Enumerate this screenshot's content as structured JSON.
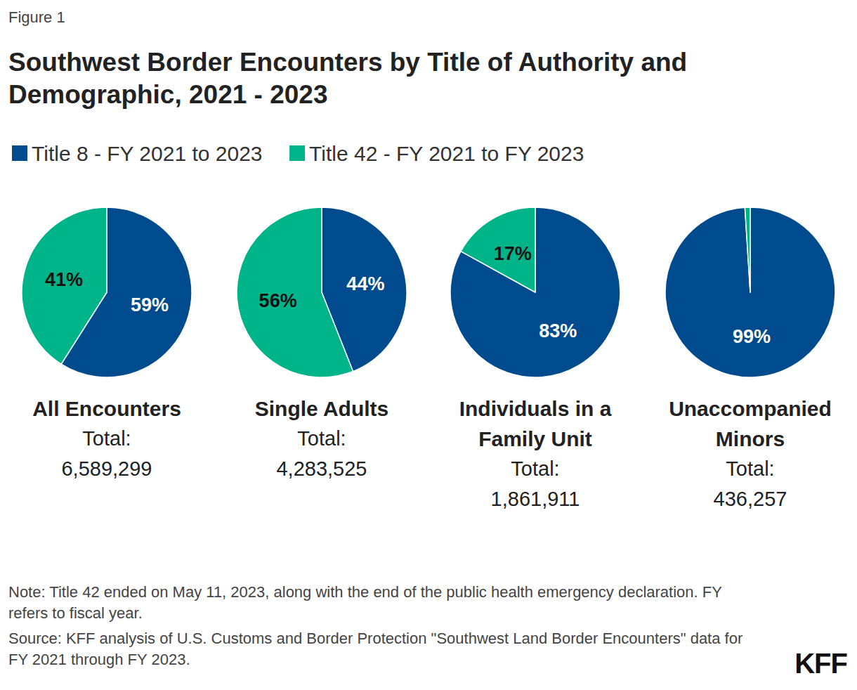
{
  "figure_label": "Figure 1",
  "title": "Southwest Border Encounters by Title of Authority and Demographic, 2021 - 2023",
  "chart_data": [
    {
      "type": "pie",
      "title": "All Encounters",
      "subtitle": "Total:",
      "total": {
        "value": 6589299,
        "label": "6,589,299"
      },
      "categories": [
        "Title 8 - FY 2021 to 2023",
        "Title 42 - FY 2021 to FY 2023"
      ],
      "values": [
        59,
        41
      ],
      "value_labels": [
        "59%",
        "41%"
      ],
      "colors": [
        "#004b8d",
        "#00b48a"
      ],
      "data_labels": true
    },
    {
      "type": "pie",
      "title": "Single Adults",
      "subtitle": "Total:",
      "total": {
        "value": 4283525,
        "label": "4,283,525"
      },
      "categories": [
        "Title 8 - FY 2021 to 2023",
        "Title 42 - FY 2021 to FY 2023"
      ],
      "values": [
        44,
        56
      ],
      "value_labels": [
        "44%",
        "56%"
      ],
      "colors": [
        "#004b8d",
        "#00b48a"
      ],
      "data_labels": true
    },
    {
      "type": "pie",
      "title": "Individuals in a Family Unit",
      "subtitle": "Total:",
      "total": {
        "value": 1861911,
        "label": "1,861,911"
      },
      "categories": [
        "Title 8 - FY 2021 to 2023",
        "Title 42 - FY 2021 to FY 2023"
      ],
      "values": [
        83,
        17
      ],
      "value_labels": [
        "83%",
        "17%"
      ],
      "colors": [
        "#004b8d",
        "#00b48a"
      ],
      "data_labels": true
    },
    {
      "type": "pie",
      "title": "Unaccompanied Minors",
      "subtitle": "Total:",
      "total": {
        "value": 436257,
        "label": "436,257"
      },
      "categories": [
        "Title 8 - FY 2021 to 2023",
        "Title 42 - FY 2021 to FY 2023"
      ],
      "values": [
        99,
        1
      ],
      "value_labels": [
        "99%",
        null
      ],
      "colors": [
        "#004b8d",
        "#00b48a"
      ],
      "data_labels": true
    }
  ],
  "notes": [
    "Note: Title 42 ended on May 11, 2023, along with the end of the public health emergency declaration. FY refers to fiscal year.",
    "Source: KFF analysis of U.S. Customs and Border Protection \"Southwest Land Border Encounters\" data for FY 2021 through FY 2023."
  ],
  "logo": "KFF"
}
